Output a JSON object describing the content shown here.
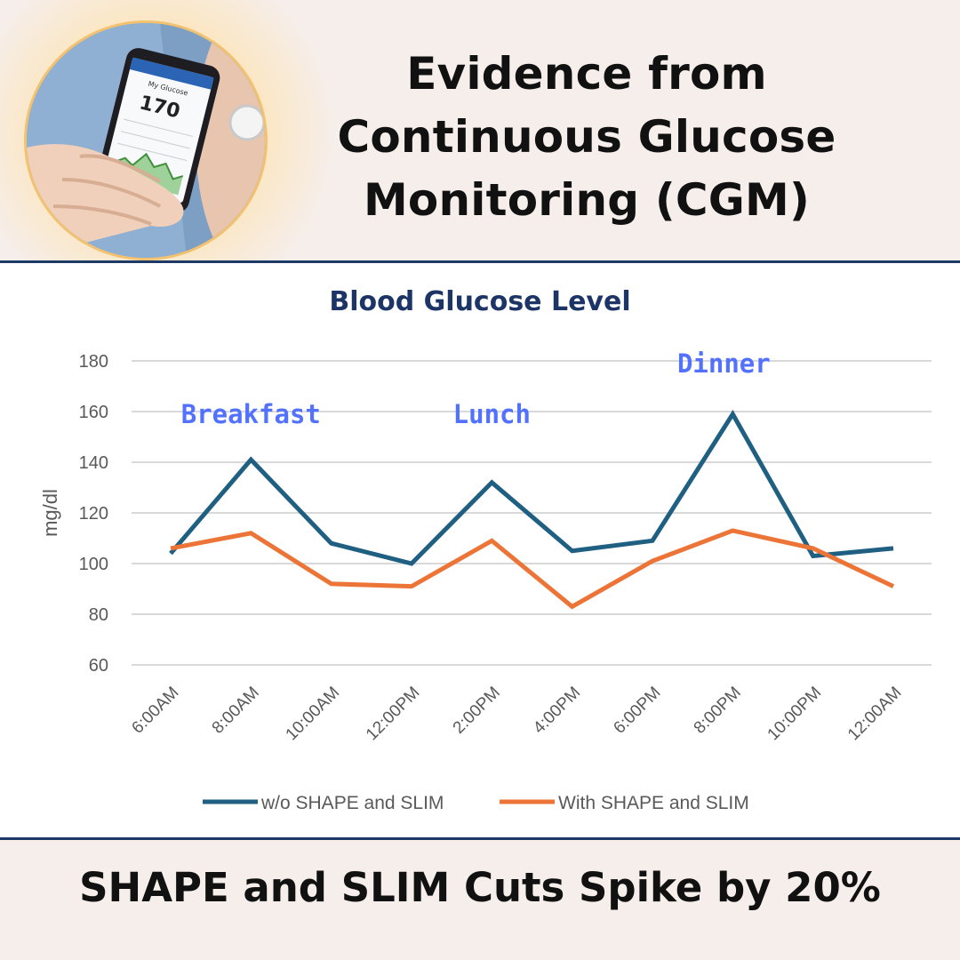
{
  "header": {
    "title_lines": [
      "Evidence from",
      "Continuous Glucose",
      "Monitoring (CGM)"
    ],
    "photo": {
      "icon": "cgm-phone-photo",
      "screen_label": "My Glucose",
      "screen_value": "170"
    }
  },
  "colors": {
    "series1": "#1f5f82",
    "series2": "#ed7437",
    "annotation": "#5271ff",
    "title": "#1c3566",
    "rule": "#1d3a66",
    "axis_text": "#595959",
    "grid": "#d9d9d9"
  },
  "chart_data": {
    "type": "line",
    "title": "Blood Glucose Level",
    "ylabel": "mg/dl",
    "xlabel": "",
    "ylim": [
      60,
      180
    ],
    "yticks": [
      60,
      80,
      100,
      120,
      140,
      160,
      180
    ],
    "grid": true,
    "legend_position": "bottom",
    "categories": [
      "6:00AM",
      "8:00AM",
      "10:00AM",
      "12:00PM",
      "2:00PM",
      "4:00PM",
      "6:00PM",
      "8:00PM",
      "10:00PM",
      "12:00AM"
    ],
    "series": [
      {
        "name": "w/o SHAPE and SLIM",
        "values": [
          104,
          141,
          108,
          100,
          132,
          105,
          109,
          159,
          103,
          106
        ]
      },
      {
        "name": "With SHAPE and SLIM",
        "values": [
          106,
          112,
          92,
          91,
          109,
          83,
          101,
          113,
          106,
          91
        ]
      }
    ],
    "annotations": [
      {
        "text": "Breakfast",
        "x": "8:00AM",
        "y": 160
      },
      {
        "text": "Lunch",
        "x": "2:00PM",
        "y": 160
      },
      {
        "text": "Dinner",
        "x": "8:00PM",
        "y": 180
      }
    ]
  },
  "footer": {
    "tagline": "SHAPE and SLIM Cuts Spike by 20%"
  }
}
